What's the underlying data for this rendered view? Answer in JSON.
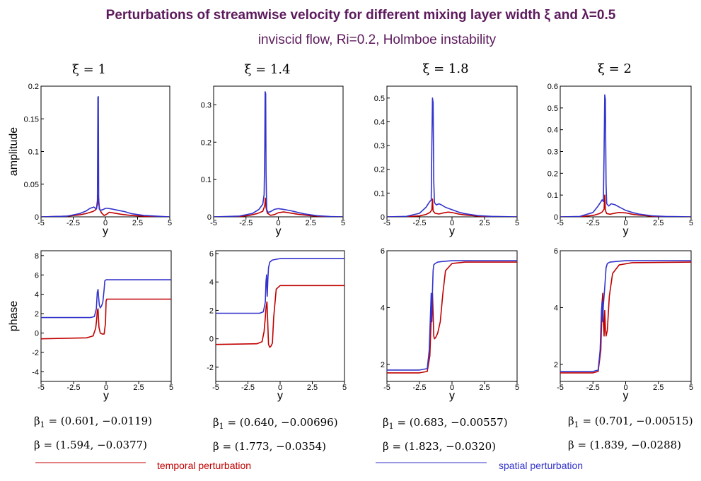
{
  "title": {
    "main": "Perturbations of streamwise velocity for different mixing layer width ξ and λ=0.5",
    "subtitle": "inviscid flow,  Ri=0.2,   Holmboe instability"
  },
  "colors": {
    "temporal": "#c00000",
    "spatial": "#3333cc",
    "title": "#5c1a5c"
  },
  "legend": {
    "temporal": "temporal perturbation",
    "spatial": "spatial perturbation"
  },
  "chart_data": [
    {
      "xi_label": "ξ = 1",
      "beta1": "β1 = (0.601, −0.0119)",
      "beta": "β = (1.594, −0.0377)",
      "amplitude": {
        "type": "line",
        "xlabel": "y",
        "ylabel": "amplitude",
        "xlim": [
          -5,
          5
        ],
        "ylim": [
          0,
          0.2
        ],
        "xticks": [
          "-5",
          "-2.5",
          "0",
          "2.5",
          "5"
        ],
        "yticks": [
          "0",
          "0.05",
          "0.1",
          "0.15",
          "0.2"
        ],
        "series": [
          {
            "color": "temporal",
            "x": [
              -5,
              -3,
              -2,
              -1.5,
              -1,
              -0.8,
              -0.7,
              -0.6,
              -0.55,
              -0.5,
              -0.45,
              -0.3,
              -0.1,
              0.1,
              0.3,
              0.6,
              1.2,
              2,
              3,
              4,
              5
            ],
            "y": [
              0,
              0.001,
              0.003,
              0.005,
              0.008,
              0.01,
              0.013,
              0.02,
              0.033,
              0.02,
              0.012,
              0.006,
              0.002,
              0.004,
              0.007,
              0.006,
              0.004,
              0.002,
              0.001,
              0,
              0
            ]
          },
          {
            "color": "spatial",
            "x": [
              -5,
              -3,
              -2,
              -1.5,
              -1.2,
              -0.9,
              -0.7,
              -0.62,
              -0.58,
              -0.55,
              -0.52,
              -0.48,
              -0.4,
              -0.2,
              0,
              0.2,
              0.5,
              1,
              1.5,
              2,
              3,
              4,
              5
            ],
            "y": [
              0,
              0.001,
              0.005,
              0.009,
              0.013,
              0.015,
              0.012,
              0.025,
              0.183,
              0.184,
              0.03,
              0.012,
              0.01,
              0.011,
              0.013,
              0.013,
              0.012,
              0.01,
              0.008,
              0.005,
              0.002,
              0.001,
              0
            ]
          }
        ]
      },
      "phase": {
        "type": "line",
        "xlabel": "y",
        "ylabel": "phase",
        "xlim": [
          -5,
          5
        ],
        "ylim": [
          -5,
          8.5
        ],
        "xticks": [
          "-5",
          "-2.5",
          "0",
          "2.5",
          "5"
        ],
        "yticks": [
          "-4",
          "-2",
          "0",
          "2",
          "4",
          "6",
          "8"
        ],
        "series": [
          {
            "color": "temporal",
            "x": [
              -5,
              -1.5,
              -1,
              -0.8,
              -0.72,
              -0.68,
              -0.62,
              -0.55,
              -0.45,
              -0.3,
              -0.15,
              -0.05,
              0,
              0.05,
              0.2,
              5
            ],
            "y": [
              -0.6,
              -0.5,
              -0.3,
              0.5,
              1.5,
              2.3,
              2.5,
              0.6,
              0,
              -0.1,
              -0.1,
              1,
              3.3,
              3.5,
              3.5,
              3.5
            ]
          },
          {
            "color": "spatial",
            "x": [
              -5,
              -1.2,
              -0.9,
              -0.75,
              -0.68,
              -0.62,
              -0.58,
              -0.52,
              -0.45,
              -0.35,
              -0.25,
              -0.15,
              -0.1,
              0,
              0.3,
              5
            ],
            "y": [
              1.6,
              1.6,
              1.7,
              2.5,
              4.2,
              4.5,
              3.8,
              2.9,
              2.6,
              2.8,
              3.2,
              4.5,
              5.4,
              5.5,
              5.5,
              5.5
            ]
          }
        ]
      }
    },
    {
      "xi_label": "ξ = 1.4",
      "beta1": "β1 = (0.640, −0.00696)",
      "beta": "β = (1.773, −0.0354)",
      "amplitude": {
        "type": "line",
        "xlabel": "y",
        "ylabel": "",
        "xlim": [
          -5,
          5
        ],
        "ylim": [
          0,
          0.35
        ],
        "xticks": [
          "-5",
          "-2.5",
          "0",
          "2.5",
          "5"
        ],
        "yticks": [
          "0",
          "0.1",
          "0.2",
          "0.3"
        ],
        "series": [
          {
            "color": "temporal",
            "x": [
              -5,
              -3,
              -2.2,
              -1.6,
              -1.2,
              -1.05,
              -1,
              -0.95,
              -0.85,
              -0.6,
              -0.3,
              0,
              0.4,
              0.8,
              1.5,
              2.5,
              3.5,
              5
            ],
            "y": [
              0,
              0.001,
              0.004,
              0.009,
              0.015,
              0.03,
              0.05,
              0.025,
              0.01,
              0.004,
              0.006,
              0.011,
              0.013,
              0.011,
              0.007,
              0.003,
              0.001,
              0
            ]
          },
          {
            "color": "spatial",
            "x": [
              -5,
              -3,
              -2,
              -1.5,
              -1.2,
              -1.1,
              -1.05,
              -1.02,
              -0.98,
              -0.95,
              -0.9,
              -0.8,
              -0.6,
              -0.3,
              0,
              0.4,
              1,
              1.5,
              2,
              3,
              4,
              5
            ],
            "y": [
              0,
              0.002,
              0.009,
              0.02,
              0.034,
              0.06,
              0.18,
              0.335,
              0.33,
              0.12,
              0.02,
              0.012,
              0.014,
              0.02,
              0.022,
              0.02,
              0.016,
              0.012,
              0.008,
              0.003,
              0.001,
              0
            ]
          }
        ]
      },
      "phase": {
        "type": "line",
        "xlabel": "y",
        "ylabel": "",
        "xlim": [
          -5,
          5
        ],
        "ylim": [
          -3,
          6.2
        ],
        "xticks": [
          "-5",
          "-2.5",
          "0",
          "2.5",
          "5"
        ],
        "yticks": [
          "-2",
          "0",
          "2",
          "4",
          "6"
        ],
        "series": [
          {
            "color": "temporal",
            "x": [
              -5,
              -1.8,
              -1.4,
              -1.25,
              -1.15,
              -1.08,
              -1.02,
              -0.98,
              -0.9,
              -0.8,
              -0.7,
              -0.6,
              -0.5,
              -0.3,
              0,
              5
            ],
            "y": [
              -0.4,
              -0.35,
              -0.2,
              0.5,
              1.5,
              2.3,
              2.6,
              1.6,
              -0.4,
              -0.6,
              -0.5,
              -0.3,
              1.5,
              3.5,
              3.75,
              3.75
            ]
          },
          {
            "color": "spatial",
            "x": [
              -5,
              -1.6,
              -1.3,
              -1.15,
              -1.1,
              -1.05,
              -1,
              -0.95,
              -0.9,
              -0.8,
              -0.6,
              -0.3,
              0,
              5
            ],
            "y": [
              1.8,
              1.8,
              1.9,
              2.6,
              4,
              4.5,
              3,
              4.2,
              5,
              5.4,
              5.55,
              5.6,
              5.65,
              5.65
            ]
          }
        ]
      }
    },
    {
      "xi_label": "ξ = 1.8",
      "beta1": "β1 = (0.683, −0.00557)",
      "beta": "β = (1.823, −0.0320)",
      "amplitude": {
        "type": "line",
        "xlabel": "y",
        "ylabel": "",
        "xlim": [
          -5,
          5
        ],
        "ylim": [
          0,
          0.55
        ],
        "xticks": [
          "-5",
          "-2.5",
          "0",
          "2.5",
          "5"
        ],
        "yticks": [
          "0",
          "0.1",
          "0.2",
          "0.3",
          "0.4",
          "0.5"
        ],
        "series": [
          {
            "color": "temporal",
            "x": [
              -5,
              -3.5,
              -2.5,
              -2,
              -1.7,
              -1.55,
              -1.5,
              -1.45,
              -1.3,
              -1,
              -0.7,
              -0.3,
              0,
              0.5,
              1,
              2,
              3,
              4,
              5
            ],
            "y": [
              0,
              0.001,
              0.004,
              0.01,
              0.018,
              0.03,
              0.075,
              0.025,
              0.015,
              0.012,
              0.016,
              0.02,
              0.018,
              0.012,
              0.008,
              0.003,
              0.001,
              0,
              0
            ]
          },
          {
            "color": "spatial",
            "x": [
              -5,
              -3.5,
              -2.5,
              -2,
              -1.7,
              -1.6,
              -1.55,
              -1.5,
              -1.45,
              -1.4,
              -1.35,
              -1.2,
              -1,
              -0.8,
              -0.5,
              0,
              0.5,
              1,
              2,
              3,
              4,
              5
            ],
            "y": [
              0,
              0.002,
              0.015,
              0.04,
              0.065,
              0.07,
              0.3,
              0.5,
              0.48,
              0.15,
              0.06,
              0.05,
              0.055,
              0.05,
              0.04,
              0.03,
              0.02,
              0.013,
              0.005,
              0.002,
              0.001,
              0
            ]
          }
        ]
      },
      "phase": {
        "type": "line",
        "xlabel": "y",
        "ylabel": "",
        "xlim": [
          -5,
          5
        ],
        "ylim": [
          1.4,
          6
        ],
        "xticks": [
          "-5",
          "-2.5",
          "0",
          "2.5",
          "5"
        ],
        "yticks": [
          "2",
          "4",
          "6"
        ],
        "series": [
          {
            "color": "temporal",
            "x": [
              -5,
              -2.5,
              -1.9,
              -1.7,
              -1.6,
              -1.55,
              -1.5,
              -1.45,
              -1.4,
              -1.35,
              -1.25,
              -1.1,
              -0.9,
              -0.7,
              -0.5,
              0,
              1,
              5
            ],
            "y": [
              1.7,
              1.7,
              1.75,
              2.3,
              3.6,
              4.4,
              4.5,
              3.8,
              3,
              2.9,
              2.95,
              3.1,
              3.5,
              4.5,
              5.3,
              5.55,
              5.6,
              5.6
            ]
          },
          {
            "color": "spatial",
            "x": [
              -5,
              -2.5,
              -1.9,
              -1.75,
              -1.65,
              -1.6,
              -1.55,
              -1.5,
              -1.45,
              -1.4,
              -1.3,
              -1.1,
              -0.8,
              0,
              5
            ],
            "y": [
              1.8,
              1.8,
              1.85,
              2.5,
              3.8,
              4.5,
              3.5,
              4.6,
              5.3,
              5.5,
              5.55,
              5.6,
              5.62,
              5.65,
              5.65
            ]
          }
        ]
      }
    },
    {
      "xi_label": "ξ = 2",
      "beta1": "β1 = (0.701, −0.00515)",
      "beta": "β = (1.839, −0.0288)",
      "amplitude": {
        "type": "line",
        "xlabel": "y",
        "ylabel": "",
        "xlim": [
          -5,
          5
        ],
        "ylim": [
          0,
          0.6
        ],
        "xticks": [
          "-5",
          "-2.5",
          "0",
          "2.5",
          "5"
        ],
        "yticks": [
          "0",
          "0.1",
          "0.2",
          "0.3",
          "0.4",
          "0.5",
          "0.6"
        ],
        "series": [
          {
            "color": "temporal",
            "x": [
              -5,
              -3.5,
              -2.5,
              -2,
              -1.8,
              -1.65,
              -1.6,
              -1.55,
              -1.45,
              -1.2,
              -0.9,
              -0.5,
              0,
              0.5,
              1,
              2,
              3,
              4,
              5
            ],
            "y": [
              0,
              0.001,
              0.006,
              0.015,
              0.022,
              0.035,
              0.1,
              0.03,
              0.015,
              0.012,
              0.016,
              0.02,
              0.018,
              0.012,
              0.008,
              0.003,
              0.001,
              0,
              0
            ]
          },
          {
            "color": "spatial",
            "x": [
              -5,
              -3.5,
              -2.5,
              -2.1,
              -1.8,
              -1.7,
              -1.65,
              -1.6,
              -1.55,
              -1.5,
              -1.45,
              -1.3,
              -1.1,
              -0.8,
              -0.5,
              0,
              0.5,
              1,
              2,
              3,
              4,
              5
            ],
            "y": [
              0,
              0.002,
              0.02,
              0.05,
              0.078,
              0.07,
              0.3,
              0.56,
              0.54,
              0.15,
              0.06,
              0.05,
              0.06,
              0.055,
              0.045,
              0.03,
              0.02,
              0.013,
              0.005,
              0.002,
              0.001,
              0
            ]
          }
        ]
      },
      "phase": {
        "type": "line",
        "xlabel": "y",
        "ylabel": "",
        "xlim": [
          -5,
          5
        ],
        "ylim": [
          1.4,
          6
        ],
        "xticks": [
          "-5",
          "-2.5",
          "0",
          "2.5",
          "5"
        ],
        "yticks": [
          "2",
          "4",
          "6"
        ],
        "series": [
          {
            "color": "temporal",
            "x": [
              -5,
              -2.5,
              -2.1,
              -1.9,
              -1.8,
              -1.75,
              -1.7,
              -1.65,
              -1.6,
              -1.55,
              -1.5,
              -1.4,
              -1.25,
              -1,
              -0.5,
              0.5,
              5
            ],
            "y": [
              1.7,
              1.7,
              1.75,
              2.5,
              4.2,
              4.5,
              3.5,
              3,
              3.9,
              3.3,
              3,
              3.2,
              4.4,
              5.2,
              5.5,
              5.58,
              5.6
            ]
          },
          {
            "color": "spatial",
            "x": [
              -5,
              -2.5,
              -2.1,
              -1.95,
              -1.85,
              -1.8,
              -1.75,
              -1.7,
              -1.6,
              -1.5,
              -1.4,
              -1.2,
              -0.8,
              0,
              5
            ],
            "y": [
              1.75,
              1.75,
              1.8,
              2.5,
              3.9,
              4.2,
              3.5,
              4.1,
              4.7,
              5.4,
              5.55,
              5.6,
              5.62,
              5.65,
              5.65
            ]
          }
        ]
      }
    }
  ]
}
